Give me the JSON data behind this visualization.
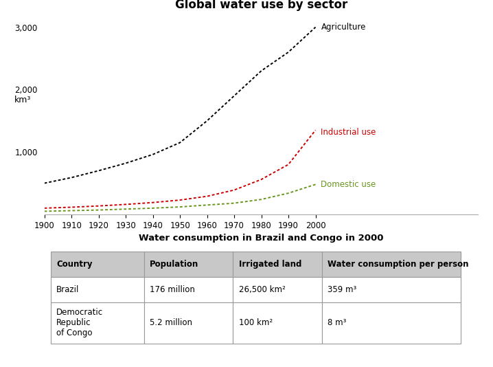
{
  "title_chart": "Global water use by sector",
  "title_table": "Water consumption in Brazil and Congo in 2000",
  "ylabel": "km³",
  "years": [
    1900,
    1910,
    1920,
    1930,
    1940,
    1950,
    1960,
    1970,
    1980,
    1990,
    2000
  ],
  "agriculture": [
    500,
    590,
    700,
    820,
    960,
    1150,
    1500,
    1900,
    2300,
    2600,
    3000
  ],
  "industrial": [
    100,
    115,
    135,
    160,
    190,
    230,
    290,
    390,
    560,
    800,
    1350
  ],
  "domestic": [
    50,
    60,
    70,
    85,
    100,
    120,
    150,
    180,
    240,
    340,
    480
  ],
  "agri_color": "#000000",
  "indus_color": "#cc0000",
  "dom_color": "#6a961f",
  "agri_label": "Agriculture",
  "indus_label": "Industrial use",
  "dom_label": "Domestic use",
  "ylim": [
    0,
    3200
  ],
  "yticks": [
    1000,
    2000,
    3000
  ],
  "ytick_labels": [
    "1,000",
    "2,000",
    "3,000"
  ],
  "xticks": [
    1900,
    1910,
    1920,
    1930,
    1940,
    1950,
    1960,
    1970,
    1980,
    1990,
    2000
  ],
  "table_headers": [
    "Country",
    "Population",
    "Irrigated land",
    "Water consumption per person"
  ],
  "table_row1": [
    "Brazil",
    "176 million",
    "26,500 km²",
    "359 m³"
  ],
  "table_row2": [
    "Democratic\nRepublic\nof Congo",
    "5.2 million",
    "100 km²",
    "8 m³"
  ],
  "header_bg": "#c8c8c8",
  "row_bg": "#ffffff",
  "table_border_color": "#999999",
  "label_fontsize": 8.5,
  "tick_fontsize": 8.5,
  "title_fontsize": 12,
  "table_title_fontsize": 9.5,
  "table_text_fontsize": 8.5
}
